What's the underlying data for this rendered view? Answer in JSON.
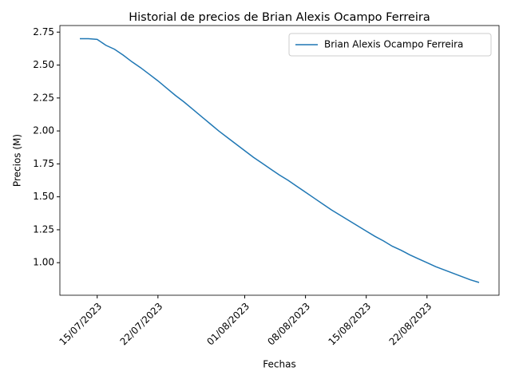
{
  "chart_data": {
    "type": "line",
    "title": "Historial de precios de Brian Alexis Ocampo Ferreira",
    "x_label": "Fechas",
    "y_label": "Precios (M)",
    "x": [
      "13/07/2023",
      "14/07/2023",
      "15/07/2023",
      "16/07/2023",
      "17/07/2023",
      "18/07/2023",
      "19/07/2023",
      "20/07/2023",
      "21/07/2023",
      "22/07/2023",
      "23/07/2023",
      "24/07/2023",
      "25/07/2023",
      "26/07/2023",
      "27/07/2023",
      "28/07/2023",
      "29/07/2023",
      "30/07/2023",
      "31/07/2023",
      "01/08/2023",
      "02/08/2023",
      "03/08/2023",
      "04/08/2023",
      "05/08/2023",
      "06/08/2023",
      "07/08/2023",
      "08/08/2023",
      "09/08/2023",
      "10/08/2023",
      "11/08/2023",
      "12/08/2023",
      "13/08/2023",
      "14/08/2023",
      "15/08/2023",
      "16/08/2023",
      "17/08/2023",
      "18/08/2023",
      "19/08/2023",
      "20/08/2023",
      "21/08/2023",
      "22/08/2023",
      "23/08/2023",
      "24/08/2023",
      "25/08/2023",
      "26/08/2023",
      "27/08/2023",
      "28/08/2023"
    ],
    "series": [
      {
        "name": "Brian Alexis Ocampo Ferreira",
        "color": "#1f77b4",
        "values": [
          2.7,
          2.7,
          2.695,
          2.65,
          2.62,
          2.575,
          2.525,
          2.48,
          2.43,
          2.38,
          2.325,
          2.27,
          2.22,
          2.165,
          2.11,
          2.055,
          2.0,
          1.95,
          1.9,
          1.85,
          1.8,
          1.755,
          1.71,
          1.665,
          1.625,
          1.58,
          1.535,
          1.49,
          1.445,
          1.4,
          1.36,
          1.32,
          1.28,
          1.24,
          1.2,
          1.165,
          1.125,
          1.095,
          1.06,
          1.03,
          1.0,
          0.97,
          0.945,
          0.92,
          0.895,
          0.87,
          0.85
        ]
      }
    ],
    "xticks": [
      "15/07/2023",
      "22/07/2023",
      "01/08/2023",
      "08/08/2023",
      "15/08/2023",
      "22/08/2023"
    ],
    "ylim": [
      0.753,
      2.8
    ],
    "yticks": [
      {
        "value": 1,
        "label": "1.00"
      },
      1.25,
      {
        "value": 1.5,
        "label": "1.50"
      },
      1.75,
      {
        "value": 2,
        "label": "2.00"
      },
      2.25,
      {
        "value": 2.5,
        "label": "2.50"
      },
      2.75
    ],
    "legend": "upper right",
    "grid": false
  }
}
